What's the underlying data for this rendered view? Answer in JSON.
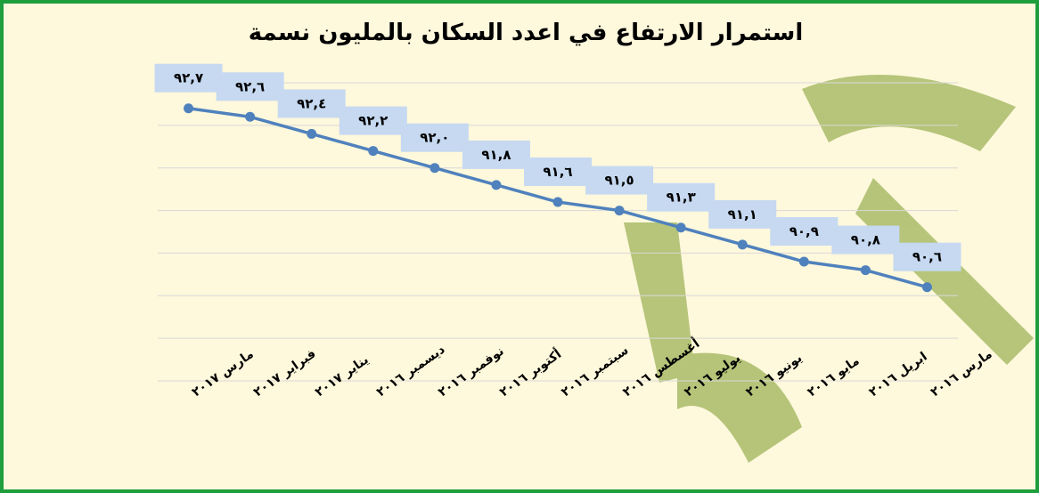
{
  "chart_data": {
    "type": "line",
    "title": "استمرار الارتفاع في اعدد السكان بالمليون نسمة",
    "categories": [
      "مارس ٢٠١٧",
      "فبراير ٢٠١٧",
      "يناير ٢٠١٧",
      "ديسمبر ٢٠١٦",
      "نوفمبر ٢٠١٦",
      "أكتوبر ٢٠١٦",
      "سبتمبر ٢٠١٦",
      "أغسطس ٢٠١٦",
      "يوليو ٢٠١٦",
      "يونيو ٢٠١٦",
      "مايو ٢٠١٦",
      "ابريل ٢٠١٦",
      "مارس ٢٠١٦"
    ],
    "series": [
      {
        "color": "#4f81bd",
        "values": [
          92.7,
          92.6,
          92.4,
          92.2,
          92.0,
          91.8,
          91.6,
          91.5,
          91.3,
          91.1,
          90.9,
          90.8,
          90.6
        ],
        "value_labels": [
          "٩٢,٧",
          "٩٢,٦",
          "٩٢,٤",
          "٩٢,٢",
          "٩٢,٠",
          "٩١,٨",
          "٩١,٦",
          "٩١,٥",
          "٩١,٣",
          "٩١,١",
          "٩٠,٩",
          "٩٠,٨",
          "٩٠,٦"
        ]
      }
    ],
    "ylim": [
      89.5,
      93
    ],
    "yticks": [
      89.5,
      90,
      90.5,
      91,
      91.5,
      92,
      92.5,
      93
    ],
    "grid": true
  }
}
